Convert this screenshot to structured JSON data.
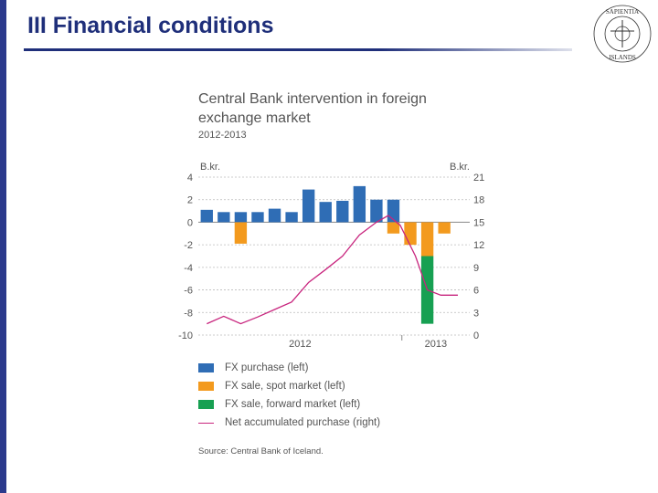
{
  "slide": {
    "title": "III Financial conditions"
  },
  "chart_data": {
    "type": "bar",
    "title": "Central Bank intervention in foreign exchange market",
    "subtitle": "2012-2013",
    "left_axis": {
      "label": "B.kr.",
      "range": [
        -10,
        4
      ],
      "ticks": [
        "4",
        "2",
        "0",
        "-2",
        "-4",
        "-6",
        "-8",
        "-10"
      ]
    },
    "right_axis": {
      "label": "B.kr.",
      "range": [
        0,
        21
      ],
      "ticks": [
        "21",
        "18",
        "15",
        "12",
        "9",
        "6",
        "3",
        "0"
      ]
    },
    "x_tick_labels": [
      "2012",
      "2013"
    ],
    "grid": true,
    "periods": 16,
    "series": [
      {
        "name": "FX purchase (left)",
        "color": "#2f6db5",
        "axis": "left",
        "type": "bar",
        "values": [
          1.1,
          0.9,
          0.9,
          0.9,
          1.2,
          0.9,
          2.9,
          1.8,
          1.9,
          3.2,
          2.0,
          2.0,
          0,
          0,
          0,
          0
        ]
      },
      {
        "name": "FX sale, spot market (left)",
        "color": "#f39a1e",
        "axis": "left",
        "type": "bar",
        "values": [
          0,
          0,
          -1.9,
          0,
          0,
          0,
          0,
          0,
          0,
          0,
          0,
          -1.0,
          -2.0,
          -3.0,
          -1.0,
          0
        ]
      },
      {
        "name": "FX sale, forward market (left)",
        "color": "#17a052",
        "axis": "left",
        "type": "bar",
        "values": [
          0,
          0,
          0,
          0,
          0,
          0,
          0,
          0,
          0,
          0,
          0,
          0,
          0,
          -6.0,
          0,
          0
        ]
      },
      {
        "name": "Net accumulated purchase (right)",
        "color": "#c8257e",
        "axis": "right",
        "type": "line",
        "points": [
          [
            0.5,
            1.5
          ],
          [
            1.5,
            2.5
          ],
          [
            2.5,
            1.5
          ],
          [
            3.5,
            2.4
          ],
          [
            4.5,
            3.4
          ],
          [
            5.5,
            4.4
          ],
          [
            6.5,
            7.0
          ],
          [
            7.5,
            8.7
          ],
          [
            8.5,
            10.5
          ],
          [
            9.5,
            13.3
          ],
          [
            10.5,
            15.0
          ],
          [
            11.2,
            15.9
          ],
          [
            11.9,
            14.6
          ],
          [
            12.8,
            10.5
          ],
          [
            13.5,
            6.0
          ],
          [
            14.3,
            5.3
          ],
          [
            15.3,
            5.3
          ]
        ]
      }
    ]
  },
  "source": "Source: Central Bank of Iceland."
}
